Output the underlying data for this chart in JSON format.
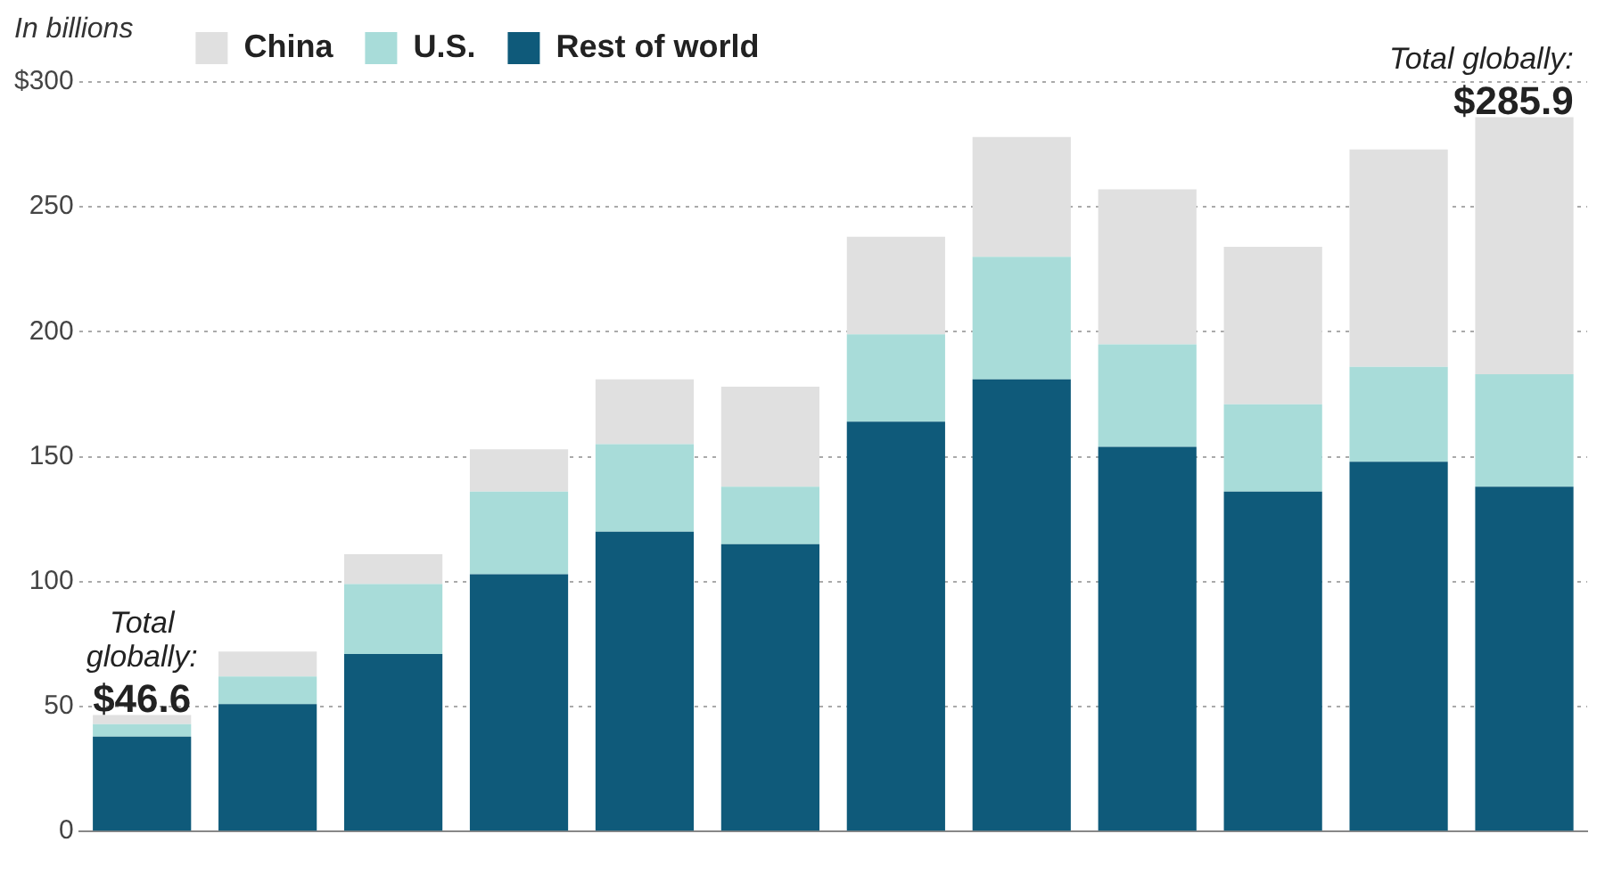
{
  "chart_data": {
    "type": "bar",
    "stacked": true,
    "ylabel": "In billions",
    "categories": [
      null,
      null,
      null,
      null,
      null,
      null,
      null,
      null,
      null,
      null,
      null,
      null
    ],
    "series": [
      {
        "name": "Rest of world",
        "color": "#0f5a7a",
        "values": [
          38,
          51,
          71,
          103,
          120,
          115,
          164,
          181,
          154,
          136,
          148,
          138
        ]
      },
      {
        "name": "U.S.",
        "color": "#a8dcd9",
        "values": [
          5,
          11,
          28,
          33,
          35,
          23,
          35,
          49,
          41,
          35,
          38,
          45
        ]
      },
      {
        "name": "China",
        "color": "#e0e0e0",
        "values": [
          3.6,
          10,
          12,
          17,
          26,
          40,
          39,
          48,
          62,
          63,
          87,
          102.9
        ]
      }
    ],
    "ylim": [
      0,
      300
    ],
    "yticks": [
      0,
      50,
      100,
      150,
      200,
      250,
      {
        "value": 300,
        "label": "$300"
      }
    ],
    "grid": "y",
    "legend": "top",
    "annotations": [
      "Total globally: $46.6",
      "Total globally: $285.9"
    ]
  }
}
